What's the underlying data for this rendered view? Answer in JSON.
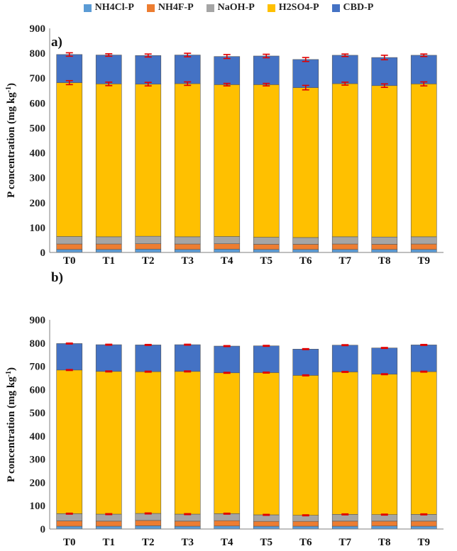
{
  "legend": [
    {
      "name": "NH4Cl-P",
      "color": "#5b9bd5"
    },
    {
      "name": "NH4F-P",
      "color": "#ed7d31"
    },
    {
      "name": "NaOH-P",
      "color": "#a5a5a5"
    },
    {
      "name": "H2SO4-P",
      "color": "#ffc000"
    },
    {
      "name": "CBD-P",
      "color": "#4472c4"
    }
  ],
  "error_bar_color": "#e00000",
  "chart_data": [
    {
      "type": "bar",
      "stacked": true,
      "panel_label": "a)",
      "ylabel": "P concentration (mg kg-1)",
      "ylabel_main": "P concentration (mg kg",
      "ylabel_sup": "-1",
      "ylabel_end": ")",
      "xlabel": "",
      "ylim": [
        0,
        900
      ],
      "yticks": [
        0,
        100,
        200,
        300,
        400,
        500,
        600,
        700,
        800,
        900
      ],
      "categories": [
        "T0",
        "T1",
        "T2",
        "T3",
        "T4",
        "T5",
        "T6",
        "T7",
        "T8",
        "T9"
      ],
      "series": [
        {
          "name": "NH4Cl-P",
          "values": [
            12,
            12,
            13,
            12,
            13,
            12,
            12,
            12,
            12,
            12
          ]
        },
        {
          "name": "NH4F-P",
          "values": [
            22,
            22,
            22,
            22,
            22,
            21,
            21,
            22,
            21,
            22
          ]
        },
        {
          "name": "NaOH-P",
          "values": [
            30,
            29,
            30,
            29,
            29,
            28,
            27,
            29,
            29,
            29
          ]
        },
        {
          "name": "H2SO4-P",
          "values": [
            618,
            614,
            611,
            615,
            610,
            613,
            602,
            615,
            608,
            614
          ]
        },
        {
          "name": "CBD-P",
          "values": [
            113,
            116,
            115,
            115,
            113,
            115,
            113,
            114,
            113,
            115
          ]
        }
      ],
      "error_bars": {
        "H2SO4-P": [
          8,
          7,
          7,
          7,
          5,
          5,
          9,
          6,
          7,
          8
        ],
        "CBD-P": [
          7,
          5,
          6,
          7,
          8,
          7,
          8,
          5,
          9,
          5
        ]
      }
    },
    {
      "type": "bar",
      "stacked": true,
      "panel_label": "b)",
      "ylabel": "P concentration (mg kg-1)",
      "ylabel_main": "P concentration (mg kg",
      "ylabel_sup": "-1",
      "ylabel_end": ")",
      "xlabel": "",
      "ylim": [
        0,
        900
      ],
      "yticks": [
        0,
        100,
        200,
        300,
        400,
        500,
        600,
        700,
        800,
        900
      ],
      "categories": [
        "T0",
        "T1",
        "T2",
        "T3",
        "T4",
        "T5",
        "T6",
        "T7",
        "T8",
        "T9"
      ],
      "series": [
        {
          "name": "NH4Cl-P",
          "values": [
            12,
            12,
            14,
            12,
            13,
            12,
            12,
            12,
            13,
            12
          ]
        },
        {
          "name": "NH4F-P",
          "values": [
            23,
            22,
            23,
            22,
            23,
            21,
            21,
            22,
            21,
            22
          ]
        },
        {
          "name": "NaOH-P",
          "values": [
            31,
            30,
            30,
            30,
            30,
            28,
            26,
            29,
            28,
            29
          ]
        },
        {
          "name": "H2SO4-P",
          "values": [
            618,
            614,
            610,
            614,
            606,
            612,
            602,
            613,
            604,
            614
          ]
        },
        {
          "name": "CBD-P",
          "values": [
            114,
            115,
            115,
            115,
            115,
            115,
            113,
            115,
            113,
            115
          ]
        }
      ],
      "error_bars": {
        "H2SO4-P": [
          2,
          2,
          2,
          2,
          2,
          2,
          2,
          2,
          2,
          2
        ],
        "NaOH-P": [
          2,
          2,
          2,
          2,
          2,
          2,
          2,
          2,
          2,
          2
        ],
        "CBD-P": [
          2,
          2,
          2,
          2,
          2,
          2,
          2,
          2,
          2,
          2
        ]
      }
    }
  ]
}
